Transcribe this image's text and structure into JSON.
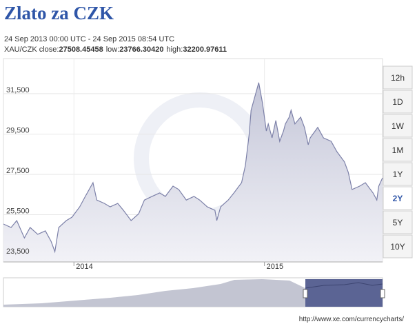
{
  "chart_data": {
    "type": "area",
    "title": "Zlato za CZK",
    "subtitle": "24 Sep 2013 00:00 UTC - 24 Sep 2015 08:54 UTC",
    "stats": [
      {
        "label": "XAU/CZK close:",
        "value": "27508.45458"
      },
      {
        "label": "low:",
        "value": "23766.30420"
      },
      {
        "label": "high:",
        "value": "32200.97611"
      }
    ],
    "x": [
      2013.63,
      2013.67,
      2013.7,
      2013.74,
      2013.77,
      2013.81,
      2013.85,
      2013.88,
      2013.9,
      2013.92,
      2013.96,
      2013.99,
      2014.03,
      2014.06,
      2014.1,
      2014.12,
      2014.16,
      2014.19,
      2014.23,
      2014.26,
      2014.3,
      2014.34,
      2014.37,
      2014.41,
      2014.45,
      2014.48,
      2014.52,
      2014.55,
      2014.59,
      2014.63,
      2014.66,
      2014.7,
      2014.74,
      2014.75,
      2014.77,
      2014.81,
      2014.84,
      2014.88,
      2014.9,
      2014.92,
      2014.93,
      2014.95,
      2014.97,
      2014.99,
      2015.01,
      2015.02,
      2015.04,
      2015.06,
      2015.08,
      2015.1,
      2015.11,
      2015.13,
      2015.14,
      2015.16,
      2015.19,
      2015.21,
      2015.23,
      2015.24,
      2015.28,
      2015.31,
      2015.35,
      2015.38,
      2015.42,
      2015.44,
      2015.46,
      2015.5,
      2015.53,
      2015.57,
      2015.59,
      2015.6,
      2015.62
    ],
    "values": [
      25040,
      24870,
      25210,
      24350,
      24870,
      24530,
      24700,
      24180,
      23670,
      24870,
      25210,
      25380,
      25890,
      26410,
      27090,
      26230,
      26060,
      25890,
      26060,
      25720,
      25210,
      25550,
      26230,
      26410,
      26580,
      26410,
      26920,
      26750,
      26230,
      26410,
      26230,
      25890,
      25720,
      25210,
      25890,
      26230,
      26580,
      27090,
      27940,
      29480,
      30680,
      31360,
      32050,
      31020,
      29650,
      30000,
      29310,
      30170,
      29140,
      29650,
      30000,
      30340,
      30680,
      30000,
      30340,
      29830,
      28970,
      29310,
      29830,
      29310,
      29140,
      28630,
      28120,
      27600,
      26750,
      26920,
      27090,
      26580,
      26230,
      26920,
      27330
    ],
    "color": "#7c80a8",
    "xlim": [
      2013.63,
      2015.62
    ],
    "xticks": [
      2014,
      2015
    ],
    "ylim": [
      23160,
      33240
    ],
    "yticks": [
      {
        "value": 23500,
        "label": "23,500"
      },
      {
        "value": 25500,
        "label": "25,500"
      },
      {
        "value": 27500,
        "label": "27,500"
      },
      {
        "value": 29500,
        "label": "29,500"
      },
      {
        "value": 31500,
        "label": "31,500"
      }
    ],
    "grid": true,
    "range_buttons": [
      "12h",
      "1D",
      "1W",
      "1M",
      "1Y",
      "2Y",
      "5Y",
      "10Y"
    ],
    "selected_range": "2Y",
    "source": "http://www.xe.com/currencycharts/"
  }
}
